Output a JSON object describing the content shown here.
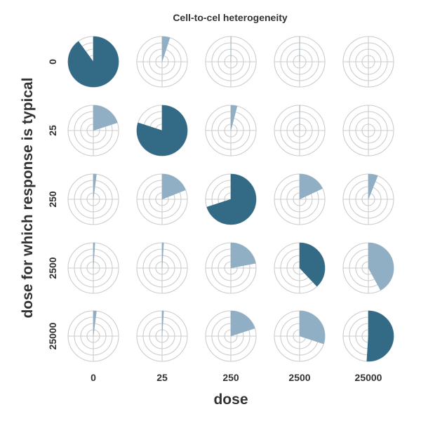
{
  "chart_data": {
    "type": "polar-small-multiples",
    "title": "Cell-to-cel heterogeneity",
    "xlabel": "dose",
    "ylabel": "dose for which response is typical",
    "columns": [
      "0",
      "25",
      "250",
      "2500",
      "25000"
    ],
    "rows": [
      "0",
      "25",
      "250",
      "2500",
      "25000"
    ],
    "value_unit": "fraction of full circle",
    "values": [
      [
        0.9,
        0.05,
        0.002,
        0.001,
        0.0
      ],
      [
        0.2,
        0.8,
        0.04,
        0.002,
        0.0
      ],
      [
        0.02,
        0.19,
        0.7,
        0.18,
        0.06
      ],
      [
        0.01,
        0.01,
        0.22,
        0.38,
        0.42
      ],
      [
        0.02,
        0.01,
        0.2,
        0.3,
        0.51
      ]
    ],
    "colors": {
      "diagonal": "#336b87",
      "off_diagonal": "#90afc5",
      "grid": "#cccccc",
      "text": "#333333"
    },
    "grid": true,
    "legend": "none"
  }
}
